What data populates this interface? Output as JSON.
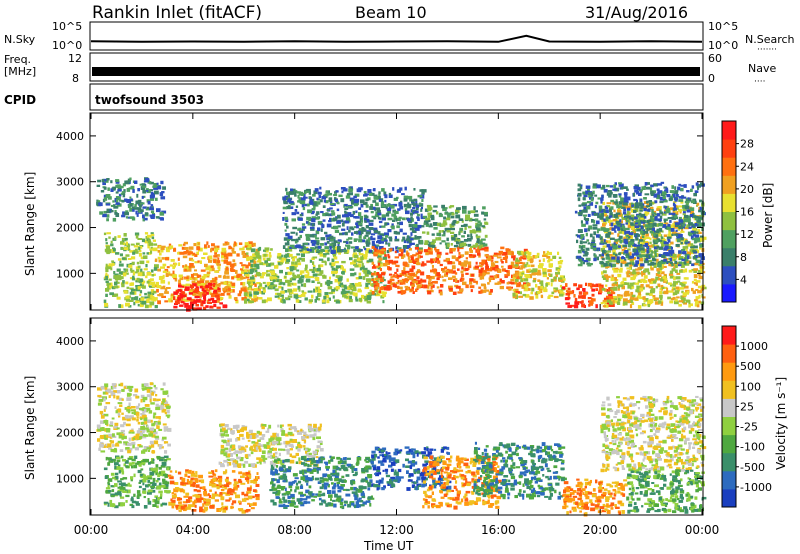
{
  "header": {
    "title": "Rankin Inlet (fitACF)",
    "beam": "Beam 10",
    "date": "31/Aug/2016"
  },
  "colors": {
    "scatter_fill": "#c8c8c8",
    "ground_scatter": "#c4c4c4"
  },
  "chart_data": [
    {
      "type": "line",
      "name": "nsky-nsearch",
      "left_label": "N.Sky",
      "right_label": "N.Search",
      "left_ticks": [
        "10^5",
        "10^0"
      ],
      "right_ticks": [
        "10^5",
        "10^0"
      ],
      "x_range_hours": [
        0,
        24
      ],
      "series": [
        {
          "values": [
            [
              0,
              1.3
            ],
            [
              2,
              1.2
            ],
            [
              4,
              1.25
            ],
            [
              6,
              1.2
            ],
            [
              8,
              1.3
            ],
            [
              10,
              1.2
            ],
            [
              12,
              1.25
            ],
            [
              14,
              1.3
            ],
            [
              16,
              1.2
            ],
            [
              17.1,
              2.2
            ],
            [
              18,
              1.25
            ],
            [
              20,
              1.2
            ],
            [
              22,
              1.3
            ],
            [
              24,
              1.2
            ]
          ]
        }
      ]
    },
    {
      "type": "line",
      "name": "freq-nave",
      "left_label": "Freq.",
      "left_unit": "[MHz]",
      "right_label": "Nave",
      "left_ticks": [
        "12",
        "8"
      ],
      "right_ticks": [
        "60",
        "0"
      ],
      "series": [
        {
          "values": [
            [
              0,
              0.35
            ],
            [
              24,
              0.35
            ]
          ]
        }
      ]
    },
    {
      "type": "table",
      "name": "cpid",
      "label": "CPID",
      "value": "twofsound 3503"
    },
    {
      "type": "heatmap",
      "name": "power",
      "ylabel": "Slant Range [km]",
      "colorbar_label": "Power [dB]",
      "y_ticks": [
        1000,
        2000,
        3000,
        4000
      ],
      "ylim": [
        200,
        4500
      ],
      "xlim_hours": [
        0,
        24
      ],
      "colorbar_ticks": [
        "4",
        "8",
        "12",
        "16",
        "20",
        "24",
        "28"
      ],
      "colorbar_colors": [
        "#1a1aff",
        "#2d4fbf",
        "#3a7f6a",
        "#4fa060",
        "#8fc040",
        "#e8e030",
        "#f0a020",
        "#ff7010",
        "#ff4010",
        "#ff1a1a"
      ],
      "blobs": [
        {
          "t": [
            0.5,
            2.5
          ],
          "r": [
            300,
            1900
          ],
          "level": 4
        },
        {
          "t": [
            0.2,
            2.8
          ],
          "r": [
            2200,
            3100
          ],
          "level": 2
        },
        {
          "t": [
            2.5,
            6.5
          ],
          "r": [
            400,
            1700
          ],
          "level": 6
        },
        {
          "t": [
            3.2,
            5.2
          ],
          "r": [
            250,
            800
          ],
          "level": 9
        },
        {
          "t": [
            6,
            11.5
          ],
          "r": [
            400,
            1600
          ],
          "level": 4
        },
        {
          "t": [
            7.5,
            13
          ],
          "r": [
            1500,
            2900
          ],
          "level": 2
        },
        {
          "t": [
            11,
            17
          ],
          "r": [
            600,
            1600
          ],
          "level": 7
        },
        {
          "t": [
            13,
            15.5
          ],
          "r": [
            1600,
            2500
          ],
          "level": 3
        },
        {
          "t": [
            16.5,
            18.5
          ],
          "r": [
            500,
            1500
          ],
          "level": 5
        },
        {
          "t": [
            18.5,
            20.5
          ],
          "r": [
            300,
            800
          ],
          "level": 8
        },
        {
          "t": [
            20,
            24
          ],
          "r": [
            300,
            2600
          ],
          "level": 5
        },
        {
          "t": [
            19,
            24
          ],
          "r": [
            1200,
            3000
          ],
          "level": 2
        }
      ]
    },
    {
      "type": "heatmap",
      "name": "velocity",
      "ylabel": "Slant Range [km]",
      "colorbar_label": "Velocity [m s⁻¹]",
      "y_ticks": [
        1000,
        2000,
        3000,
        4000
      ],
      "ylim": [
        200,
        4500
      ],
      "xlim_hours": [
        0,
        24
      ],
      "colorbar_ticks": [
        "1000",
        "500",
        "100",
        "25",
        "-25",
        "-100",
        "-500",
        "-1000"
      ],
      "colorbar_colors": [
        "#1a3fbf",
        "#2d6bbf",
        "#3a8f6a",
        "#4fa840",
        "#8fd040",
        "#c8c8c8",
        "#f0c020",
        "#ff9a10",
        "#ff6010",
        "#ff1a1a"
      ],
      "x_ticks": [
        "00:00",
        "04:00",
        "08:00",
        "12:00",
        "16:00",
        "20:00",
        "00:00"
      ],
      "xlabel": "Time UT",
      "blobs": [
        {
          "t": [
            0.2,
            3
          ],
          "r": [
            1600,
            3100
          ],
          "level": 5
        },
        {
          "t": [
            0.5,
            3
          ],
          "r": [
            400,
            1500
          ],
          "level": 3
        },
        {
          "t": [
            3,
            6.5
          ],
          "r": [
            300,
            1200
          ],
          "level": 7
        },
        {
          "t": [
            5,
            9
          ],
          "r": [
            1300,
            2200
          ],
          "level": 5
        },
        {
          "t": [
            7,
            11
          ],
          "r": [
            400,
            1500
          ],
          "level": 2
        },
        {
          "t": [
            11,
            14
          ],
          "r": [
            800,
            1700
          ],
          "level": 1
        },
        {
          "t": [
            13,
            16
          ],
          "r": [
            400,
            1500
          ],
          "level": 7
        },
        {
          "t": [
            15,
            18.5
          ],
          "r": [
            600,
            1800
          ],
          "level": 2
        },
        {
          "t": [
            18.5,
            21
          ],
          "r": [
            250,
            1000
          ],
          "level": 7
        },
        {
          "t": [
            20,
            24
          ],
          "r": [
            1200,
            2800
          ],
          "level": 5
        },
        {
          "t": [
            21,
            24
          ],
          "r": [
            300,
            1200
          ],
          "level": 3
        }
      ]
    }
  ]
}
